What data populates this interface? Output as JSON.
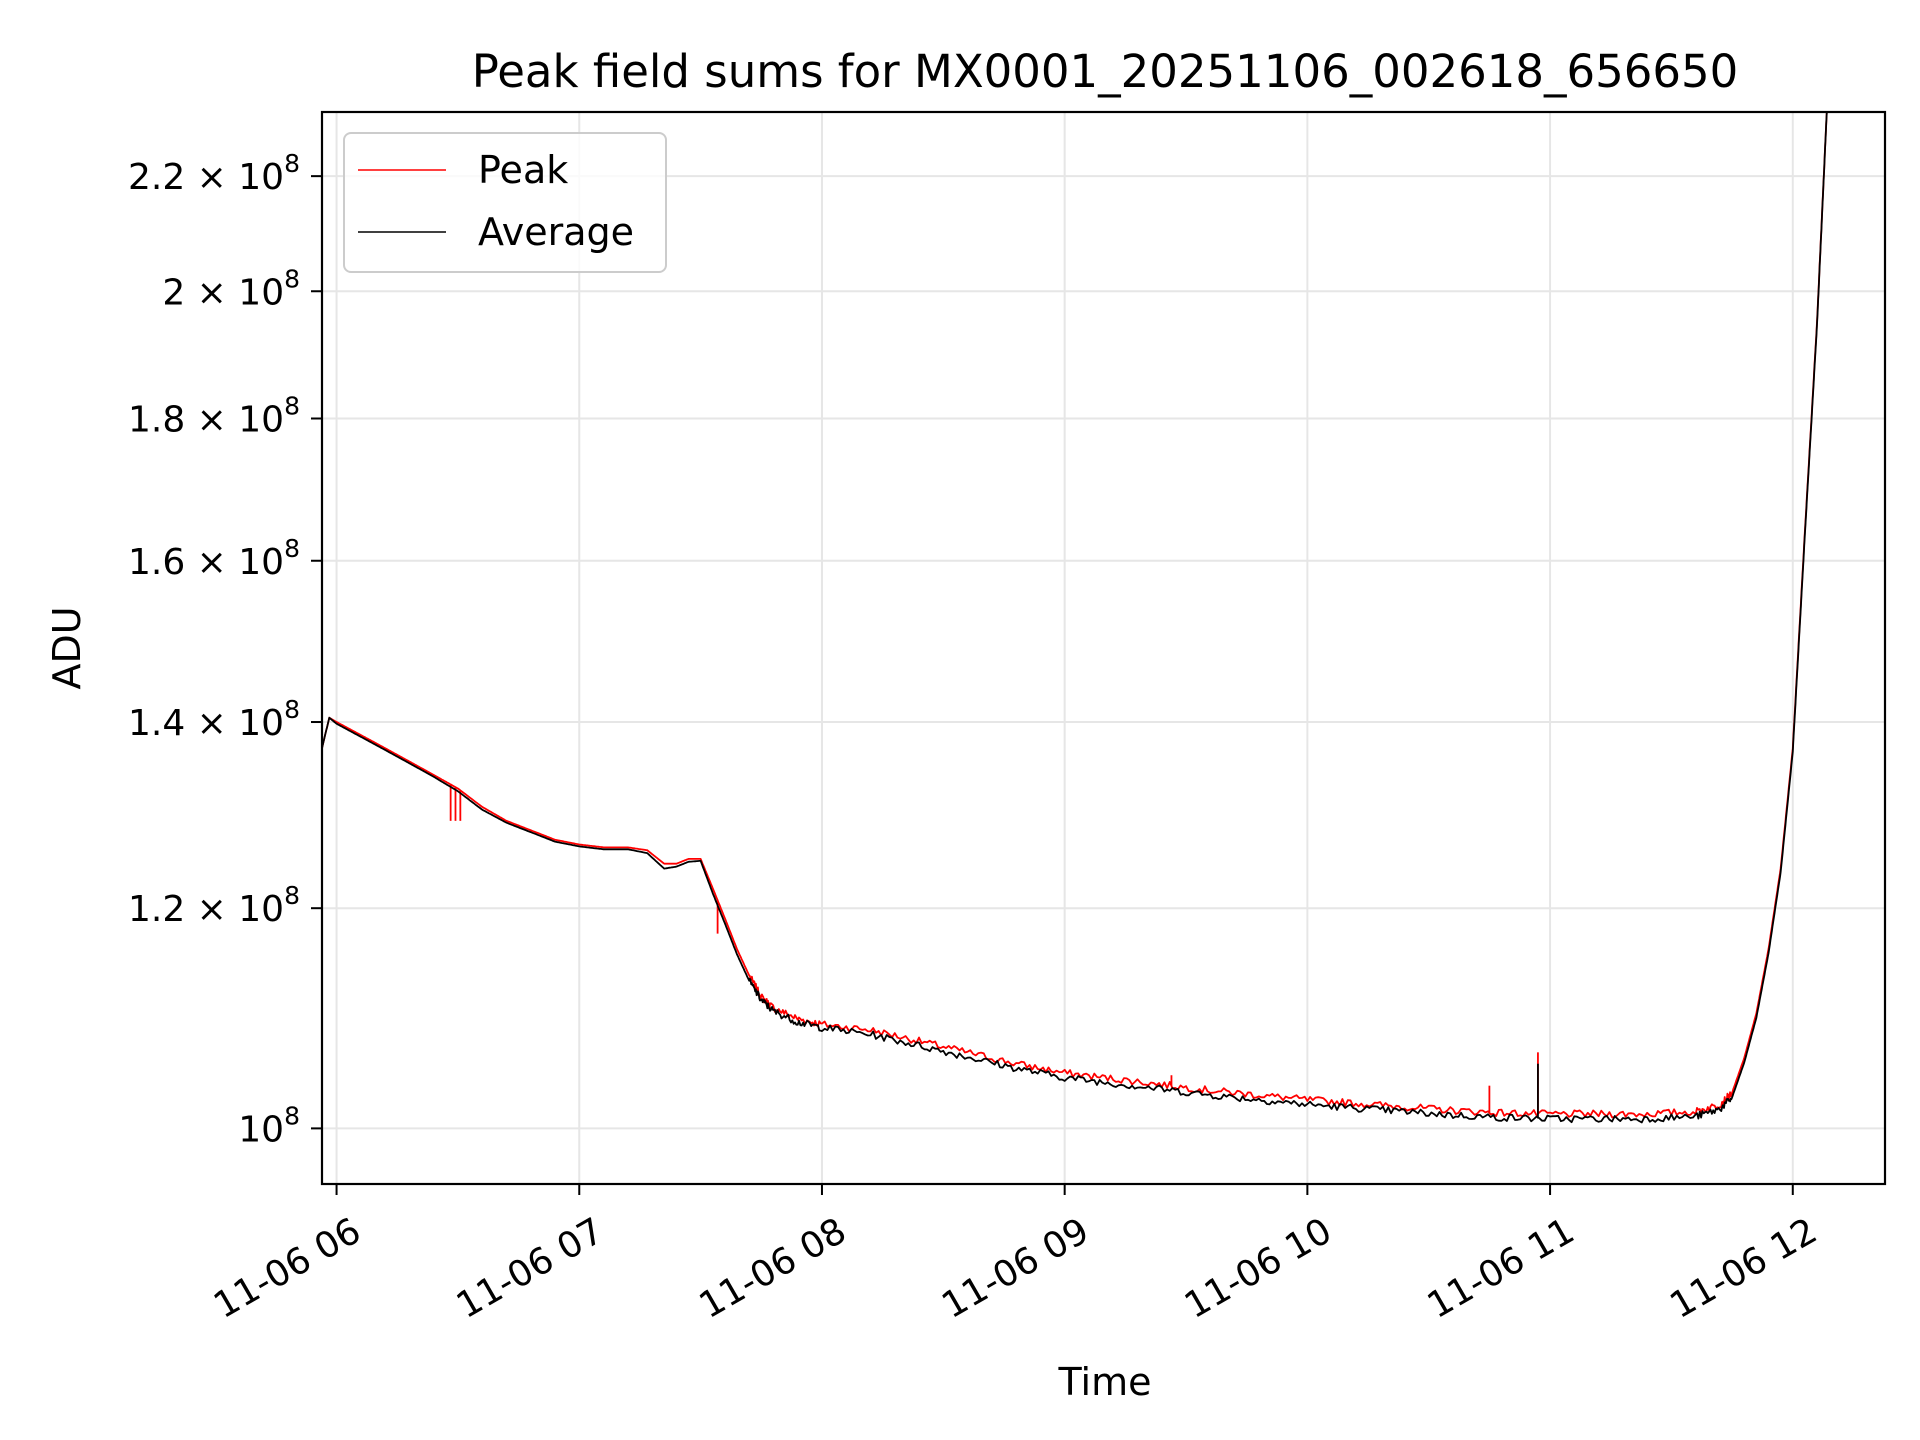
{
  "chart_data": {
    "type": "line",
    "title": "Peak field sums for MX0001_20251106_002618_656650",
    "xlabel": "Time",
    "ylabel": "ADU",
    "yscale": "log",
    "grid": true,
    "legend_position": "top-left",
    "xlim": [
      5.94,
      12.38
    ],
    "ylim": [
      95500000.0,
      232000000.0
    ],
    "x_ticks": [
      {
        "value": 6,
        "label": "11-06 06"
      },
      {
        "value": 7,
        "label": "11-06 07"
      },
      {
        "value": 8,
        "label": "11-06 08"
      },
      {
        "value": 9,
        "label": "11-06 09"
      },
      {
        "value": 10,
        "label": "11-06 10"
      },
      {
        "value": 11,
        "label": "11-06 11"
      },
      {
        "value": 12,
        "label": "11-06 12"
      }
    ],
    "y_ticks": [
      {
        "value": 100000000.0,
        "mantissa": "",
        "exponent": "8"
      },
      {
        "value": 120000000.0,
        "mantissa": "1.2",
        "exponent": "8"
      },
      {
        "value": 140000000.0,
        "mantissa": "1.4",
        "exponent": "8"
      },
      {
        "value": 160000000.0,
        "mantissa": "1.6",
        "exponent": "8"
      },
      {
        "value": 180000000.0,
        "mantissa": "1.8",
        "exponent": "8"
      },
      {
        "value": 200000000.0,
        "mantissa": "2",
        "exponent": "8"
      },
      {
        "value": 220000000.0,
        "mantissa": "2.2",
        "exponent": "8"
      }
    ],
    "series": [
      {
        "name": "Peak",
        "color": "#ff0000",
        "x": [
          5.94,
          5.97,
          6.0,
          6.1,
          6.2,
          6.3,
          6.4,
          6.5,
          6.6,
          6.7,
          6.8,
          6.9,
          7.0,
          7.1,
          7.2,
          7.28,
          7.35,
          7.4,
          7.45,
          7.5,
          7.55,
          7.6,
          7.65,
          7.7,
          7.75,
          7.8,
          7.9,
          8.0,
          8.2,
          8.4,
          8.6,
          8.8,
          9.0,
          9.2,
          9.4,
          9.6,
          9.8,
          10.0,
          10.2,
          10.4,
          10.6,
          10.8,
          11.0,
          11.2,
          11.4,
          11.6,
          11.7,
          11.75,
          11.8,
          11.85,
          11.9,
          11.95,
          12.0,
          12.05,
          12.1,
          12.14
        ],
        "values": [
          137000000.0,
          140500000.0,
          140000000.0,
          138500000.0,
          137000000.0,
          135500000.0,
          134000000.0,
          132500000.0,
          130500000.0,
          129000000.0,
          128000000.0,
          127000000.0,
          126500000.0,
          126200000.0,
          126200000.0,
          125900000.0,
          124500000.0,
          124500000.0,
          125000000.0,
          125000000.0,
          122000000.0,
          119000000.0,
          116000000.0,
          113500000.0,
          111500000.0,
          110500000.0,
          109500000.0,
          109000000.0,
          108500000.0,
          107500000.0,
          106500000.0,
          105500000.0,
          104700000.0,
          104200000.0,
          103700000.0,
          103200000.0,
          102800000.0,
          102400000.0,
          102100000.0,
          101800000.0,
          101500000.0,
          101300000.0,
          101200000.0,
          101200000.0,
          101200000.0,
          101400000.0,
          102000000.0,
          103000000.0,
          106000000.0,
          110000000.0,
          116000000.0,
          124000000.0,
          137000000.0,
          164000000.0,
          195000000.0,
          232000000.0
        ],
        "spikes": [
          {
            "x": 6.47,
            "value": 129000000.0
          },
          {
            "x": 6.49,
            "value": 129000000.0
          },
          {
            "x": 6.51,
            "value": 129000000.0
          },
          {
            "x": 7.57,
            "value": 117500000.0
          },
          {
            "x": 9.44,
            "value": 104500000.0
          },
          {
            "x": 10.75,
            "value": 103600000.0
          },
          {
            "x": 10.95,
            "value": 106500000.0
          }
        ]
      },
      {
        "name": "Average",
        "color": "#000000",
        "x": [
          5.94,
          5.97,
          6.0,
          6.1,
          6.2,
          6.3,
          6.4,
          6.5,
          6.6,
          6.7,
          6.8,
          6.9,
          7.0,
          7.1,
          7.2,
          7.28,
          7.35,
          7.4,
          7.45,
          7.5,
          7.55,
          7.6,
          7.65,
          7.7,
          7.75,
          7.8,
          7.9,
          8.0,
          8.2,
          8.4,
          8.6,
          8.8,
          9.0,
          9.2,
          9.4,
          9.6,
          9.8,
          10.0,
          10.2,
          10.4,
          10.6,
          10.8,
          11.0,
          11.2,
          11.4,
          11.6,
          11.7,
          11.75,
          11.8,
          11.85,
          11.9,
          11.95,
          12.0,
          12.05,
          12.1,
          12.14
        ],
        "values": [
          137000000.0,
          140500000.0,
          139800000.0,
          138300000.0,
          136800000.0,
          135300000.0,
          133800000.0,
          132200000.0,
          130200000.0,
          128800000.0,
          127800000.0,
          126800000.0,
          126300000.0,
          126000000.0,
          126000000.0,
          125600000.0,
          124000000.0,
          124200000.0,
          124700000.0,
          124800000.0,
          121500000.0,
          118500000.0,
          115500000.0,
          113000000.0,
          111200000.0,
          110200000.0,
          109200000.0,
          108700000.0,
          108100000.0,
          107100000.0,
          106100000.0,
          105100000.0,
          104300000.0,
          103800000.0,
          103300000.0,
          102800000.0,
          102400000.0,
          102000000.0,
          101700000.0,
          101400000.0,
          101100000.0,
          100900000.0,
          100800000.0,
          100800000.0,
          100800000.0,
          101000000.0,
          101600000.0,
          102600000.0,
          105600000.0,
          109600000.0,
          115600000.0,
          123600000.0,
          136600000.0,
          163600000.0,
          194600000.0,
          232000000.0
        ],
        "spikes": [
          {
            "x": 10.95,
            "value": 105500000.0
          }
        ]
      }
    ]
  }
}
